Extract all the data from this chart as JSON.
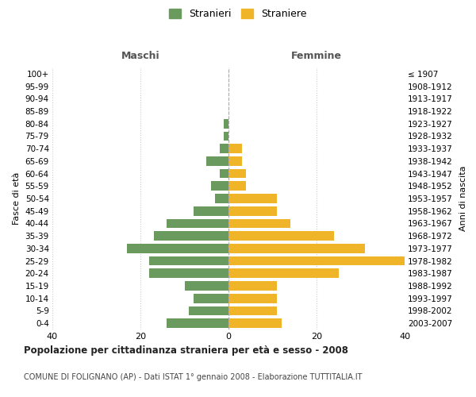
{
  "age_groups": [
    "100+",
    "95-99",
    "90-94",
    "85-89",
    "80-84",
    "75-79",
    "70-74",
    "65-69",
    "60-64",
    "55-59",
    "50-54",
    "45-49",
    "40-44",
    "35-39",
    "30-34",
    "25-29",
    "20-24",
    "15-19",
    "10-14",
    "5-9",
    "0-4"
  ],
  "birth_years": [
    "≤ 1907",
    "1908-1912",
    "1913-1917",
    "1918-1922",
    "1923-1927",
    "1928-1932",
    "1933-1937",
    "1938-1942",
    "1943-1947",
    "1948-1952",
    "1953-1957",
    "1958-1962",
    "1963-1967",
    "1968-1972",
    "1973-1977",
    "1978-1982",
    "1983-1987",
    "1988-1992",
    "1993-1997",
    "1998-2002",
    "2003-2007"
  ],
  "maschi": [
    0,
    0,
    0,
    0,
    1,
    1,
    2,
    5,
    2,
    4,
    3,
    8,
    14,
    17,
    23,
    18,
    18,
    10,
    8,
    9,
    14
  ],
  "femmine": [
    0,
    0,
    0,
    0,
    0,
    0,
    3,
    3,
    4,
    4,
    11,
    11,
    14,
    24,
    31,
    40,
    25,
    11,
    11,
    11,
    12
  ],
  "color_maschi": "#6b9a5e",
  "color_femmine": "#f0b429",
  "title_main": "Popolazione per cittadinanza straniera per età e sesso - 2008",
  "title_sub": "COMUNE DI FOLIGNANO (AP) - Dati ISTAT 1° gennaio 2008 - Elaborazione TUTTITALIA.IT",
  "legend_maschi": "Stranieri",
  "legend_femmine": "Straniere",
  "xlabel_left": "Maschi",
  "xlabel_right": "Femmine",
  "ylabel_left": "Fasce di età",
  "ylabel_right": "Anni di nascita",
  "xlim": 40,
  "background_color": "#ffffff",
  "grid_color": "#cccccc"
}
